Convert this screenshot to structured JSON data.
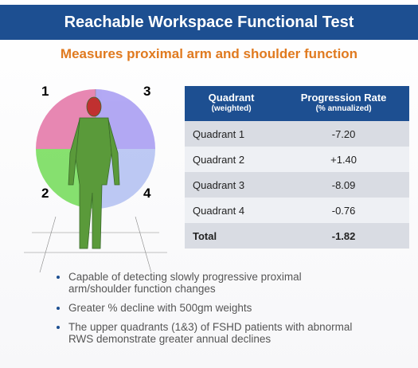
{
  "header": {
    "title": "Reachable Workspace Functional Test"
  },
  "subtitle": "Measures proximal arm and shoulder function",
  "figure": {
    "labels": [
      "1",
      "3",
      "2",
      "4"
    ]
  },
  "table": {
    "columns": [
      {
        "title": "Quadrant",
        "note": "(weighted)"
      },
      {
        "title": "Progression Rate",
        "note": "(% annualized)"
      }
    ],
    "rows": [
      [
        "Quadrant 1",
        "-7.20"
      ],
      [
        "Quadrant 2",
        "+1.40"
      ],
      [
        "Quadrant 3",
        "-8.09"
      ],
      [
        "Quadrant 4",
        "-0.76"
      ],
      [
        "Total",
        "-1.82"
      ]
    ]
  },
  "bullets": [
    [
      "Capable of detecting slowly progressive proximal",
      "arm/shoulder function changes"
    ],
    [
      "Greater % decline with 500gm weights"
    ],
    [
      "The upper quadrants (1&3) of FSHD patients with abnormal",
      "RWS demonstrate greater annual declines"
    ]
  ]
}
